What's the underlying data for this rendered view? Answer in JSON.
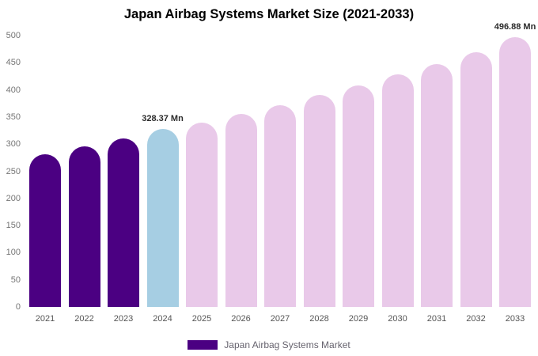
{
  "title": "Japan Airbag Systems Market Size (2021-2033)",
  "legend": {
    "label": "Japan Airbag Systems Market",
    "color": "#4B0082"
  },
  "colors": {
    "historical_bar": "#4B0082",
    "highlight_bar": "#A6CEE3",
    "forecast_bar": "#E9C9E9",
    "background": "#FFFFFF"
  },
  "chart_data": {
    "type": "bar",
    "title": "Japan Airbag Systems Market Size (2021-2033)",
    "xlabel": "",
    "ylabel": "",
    "unit": "Mn",
    "ylim": [
      0,
      500
    ],
    "yticks": [
      0,
      50,
      100,
      150,
      200,
      250,
      300,
      350,
      400,
      450,
      500
    ],
    "grid": false,
    "legend_position": "bottom",
    "categories": [
      "2021",
      "2022",
      "2023",
      "2024",
      "2025",
      "2026",
      "2027",
      "2028",
      "2029",
      "2030",
      "2031",
      "2032",
      "2033"
    ],
    "values": [
      282,
      296,
      310,
      328.37,
      340,
      355,
      372,
      390,
      408,
      428,
      448,
      470,
      496.88
    ],
    "bar_colors": [
      "#4B0082",
      "#4B0082",
      "#4B0082",
      "#A6CEE3",
      "#E9C9E9",
      "#E9C9E9",
      "#E9C9E9",
      "#E9C9E9",
      "#E9C9E9",
      "#E9C9E9",
      "#E9C9E9",
      "#E9C9E9",
      "#E9C9E9"
    ],
    "annotations": [
      {
        "index": 3,
        "label": "328.37 Mn"
      },
      {
        "index": 12,
        "label": "496.88 Mn"
      }
    ]
  }
}
